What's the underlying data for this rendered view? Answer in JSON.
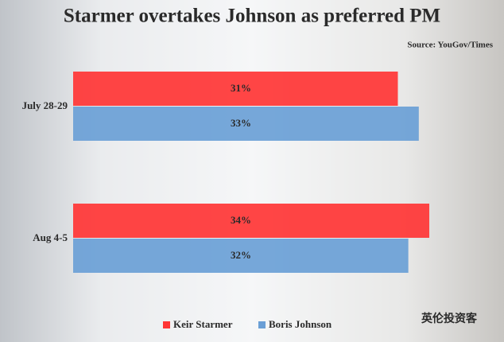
{
  "chart_data": {
    "type": "hbar_grouped",
    "title": "Starmer overtakes Johnson as preferred PM",
    "source": "Source: YouGov/Times",
    "watermark": "英伦投资客",
    "categories": [
      "July 28-29",
      "Aug 4-5"
    ],
    "series": [
      {
        "name": "Keir Starmer",
        "color": "#ff3535",
        "values": [
          31,
          34
        ],
        "value_labels": [
          "31%",
          "34%"
        ]
      },
      {
        "name": "Boris Johnson",
        "color": "#6a9fd6",
        "values": [
          33,
          32
        ],
        "value_labels": [
          "33%",
          "32%"
        ]
      }
    ]
  }
}
